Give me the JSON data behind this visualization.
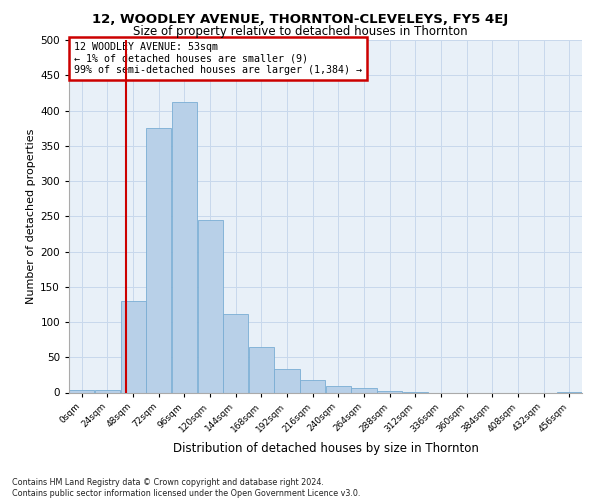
{
  "title1": "12, WOODLEY AVENUE, THORNTON-CLEVELEYS, FY5 4EJ",
  "title2": "Size of property relative to detached houses in Thornton",
  "xlabel": "Distribution of detached houses by size in Thornton",
  "ylabel": "Number of detached properties",
  "property_size": 53,
  "annotation_line1": "12 WOODLEY AVENUE: 53sqm",
  "annotation_line2": "← 1% of detached houses are smaller (9)",
  "annotation_line3": "99% of semi-detached houses are larger (1,384) →",
  "footer1": "Contains HM Land Registry data © Crown copyright and database right 2024.",
  "footer2": "Contains public sector information licensed under the Open Government Licence v3.0.",
  "bar_color": "#b8d0e8",
  "bar_edge_color": "#7aadd4",
  "vline_color": "#cc0000",
  "annotation_box_edge": "#cc0000",
  "grid_color": "#c8d8ec",
  "bg_color": "#e8f0f8",
  "bin_edges": [
    0,
    24,
    48,
    72,
    96,
    120,
    144,
    168,
    192,
    216,
    240,
    264,
    288,
    312,
    336,
    360,
    384,
    408,
    432,
    456,
    480
  ],
  "bar_heights": [
    3,
    4,
    130,
    375,
    412,
    244,
    112,
    64,
    33,
    18,
    9,
    6,
    2,
    1,
    0,
    0,
    0,
    0,
    0,
    1
  ],
  "ylim": [
    0,
    500
  ],
  "yticks": [
    0,
    50,
    100,
    150,
    200,
    250,
    300,
    350,
    400,
    450,
    500
  ],
  "xlim": [
    0,
    480
  ]
}
